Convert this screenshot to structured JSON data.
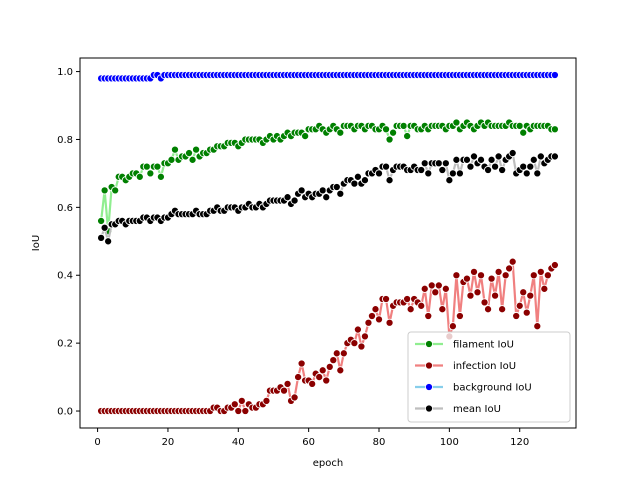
{
  "chart_data": {
    "type": "line",
    "title": "",
    "xlabel": "epoch",
    "ylabel": "IoU",
    "xlim": [
      -5,
      136
    ],
    "ylim": [
      -0.05,
      1.04
    ],
    "xticks": [
      0,
      20,
      40,
      60,
      80,
      100,
      120
    ],
    "yticks": [
      0.0,
      0.2,
      0.4,
      0.6,
      0.8,
      1.0
    ],
    "xtick_labels": [
      "0",
      "20",
      "40",
      "60",
      "80",
      "100",
      "120"
    ],
    "ytick_labels": [
      "0.0",
      "0.2",
      "0.4",
      "0.6",
      "0.8",
      "1.0"
    ],
    "grid": false,
    "legend_position": "lower-right",
    "x_start": 1,
    "x_step": 1,
    "series": [
      {
        "name": "filament IoU",
        "line_color": "#90ee90",
        "marker_color": "#008000",
        "values": [
          0.56,
          0.65,
          0.53,
          0.66,
          0.65,
          0.69,
          0.69,
          0.68,
          0.69,
          0.7,
          0.7,
          0.69,
          0.72,
          0.72,
          0.7,
          0.72,
          0.72,
          0.69,
          0.73,
          0.73,
          0.74,
          0.77,
          0.74,
          0.75,
          0.75,
          0.76,
          0.74,
          0.77,
          0.75,
          0.76,
          0.76,
          0.77,
          0.77,
          0.78,
          0.78,
          0.78,
          0.79,
          0.79,
          0.79,
          0.78,
          0.79,
          0.8,
          0.8,
          0.8,
          0.8,
          0.8,
          0.79,
          0.8,
          0.81,
          0.8,
          0.81,
          0.8,
          0.81,
          0.82,
          0.81,
          0.82,
          0.82,
          0.82,
          0.81,
          0.83,
          0.83,
          0.83,
          0.84,
          0.83,
          0.82,
          0.83,
          0.84,
          0.83,
          0.82,
          0.84,
          0.84,
          0.84,
          0.83,
          0.84,
          0.84,
          0.83,
          0.84,
          0.84,
          0.83,
          0.83,
          0.84,
          0.83,
          0.8,
          0.82,
          0.84,
          0.84,
          0.84,
          0.81,
          0.84,
          0.84,
          0.83,
          0.83,
          0.84,
          0.83,
          0.84,
          0.84,
          0.84,
          0.84,
          0.83,
          0.84,
          0.84,
          0.85,
          0.83,
          0.84,
          0.85,
          0.84,
          0.83,
          0.84,
          0.85,
          0.84,
          0.85,
          0.84,
          0.84,
          0.84,
          0.84,
          0.84,
          0.85,
          0.84,
          0.84,
          0.84,
          0.82,
          0.84,
          0.83,
          0.84,
          0.84,
          0.84,
          0.84,
          0.84,
          0.83,
          0.83
        ]
      },
      {
        "name": "infection IoU",
        "line_color": "#f08080",
        "marker_color": "#8b0000",
        "values": [
          0.0,
          0.0,
          0.0,
          0.0,
          0.0,
          0.0,
          0.0,
          0.0,
          0.0,
          0.0,
          0.0,
          0.0,
          0.0,
          0.0,
          0.0,
          0.0,
          0.0,
          0.0,
          0.0,
          0.0,
          0.0,
          0.0,
          0.0,
          0.0,
          0.0,
          0.0,
          0.0,
          0.0,
          0.0,
          0.0,
          0.0,
          0.0,
          0.01,
          0.01,
          0.0,
          0.0,
          0.01,
          0.01,
          0.02,
          0.0,
          0.03,
          0.0,
          0.02,
          0.01,
          0.01,
          0.02,
          0.02,
          0.03,
          0.06,
          0.06,
          0.06,
          0.07,
          0.06,
          0.08,
          0.03,
          0.04,
          0.1,
          0.14,
          0.09,
          0.09,
          0.08,
          0.11,
          0.1,
          0.12,
          0.09,
          0.13,
          0.15,
          0.17,
          0.12,
          0.17,
          0.2,
          0.21,
          0.2,
          0.24,
          0.19,
          0.22,
          0.26,
          0.28,
          0.3,
          0.27,
          0.33,
          0.33,
          0.26,
          0.31,
          0.32,
          0.32,
          0.32,
          0.33,
          0.3,
          0.33,
          0.32,
          0.31,
          0.36,
          0.28,
          0.37,
          0.35,
          0.37,
          0.3,
          0.36,
          0.22,
          0.25,
          0.4,
          0.28,
          0.38,
          0.39,
          0.34,
          0.41,
          0.35,
          0.4,
          0.32,
          0.3,
          0.39,
          0.34,
          0.41,
          0.3,
          0.4,
          0.42,
          0.44,
          0.28,
          0.31,
          0.35,
          0.29,
          0.34,
          0.4,
          0.25,
          0.41,
          0.36,
          0.4,
          0.42,
          0.43
        ]
      },
      {
        "name": "background IoU",
        "line_color": "#87ceeb",
        "marker_color": "#0000ff",
        "values": [
          0.98,
          0.98,
          0.98,
          0.98,
          0.98,
          0.98,
          0.98,
          0.98,
          0.98,
          0.98,
          0.98,
          0.98,
          0.98,
          0.98,
          0.98,
          0.99,
          0.99,
          0.98,
          0.99,
          0.99,
          0.99,
          0.99,
          0.99,
          0.99,
          0.99,
          0.99,
          0.99,
          0.99,
          0.99,
          0.99,
          0.99,
          0.99,
          0.99,
          0.99,
          0.99,
          0.99,
          0.99,
          0.99,
          0.99,
          0.99,
          0.99,
          0.99,
          0.99,
          0.99,
          0.99,
          0.99,
          0.99,
          0.99,
          0.99,
          0.99,
          0.99,
          0.99,
          0.99,
          0.99,
          0.99,
          0.99,
          0.99,
          0.99,
          0.99,
          0.99,
          0.99,
          0.99,
          0.99,
          0.99,
          0.99,
          0.99,
          0.99,
          0.99,
          0.99,
          0.99,
          0.99,
          0.99,
          0.99,
          0.99,
          0.99,
          0.99,
          0.99,
          0.99,
          0.99,
          0.99,
          0.99,
          0.99,
          0.99,
          0.99,
          0.99,
          0.99,
          0.99,
          0.99,
          0.99,
          0.99,
          0.99,
          0.99,
          0.99,
          0.99,
          0.99,
          0.99,
          0.99,
          0.99,
          0.99,
          0.99,
          0.99,
          0.99,
          0.99,
          0.99,
          0.99,
          0.99,
          0.99,
          0.99,
          0.99,
          0.99,
          0.99,
          0.99,
          0.99,
          0.99,
          0.99,
          0.99,
          0.99,
          0.99,
          0.99,
          0.99,
          0.99,
          0.99,
          0.99,
          0.99,
          0.99,
          0.99,
          0.99,
          0.99,
          0.99,
          0.99
        ]
      },
      {
        "name": "mean IoU",
        "line_color": "#bebebe",
        "marker_color": "#000000",
        "values": [
          0.51,
          0.54,
          0.5,
          0.55,
          0.55,
          0.56,
          0.56,
          0.55,
          0.56,
          0.56,
          0.56,
          0.56,
          0.57,
          0.57,
          0.56,
          0.57,
          0.57,
          0.56,
          0.57,
          0.57,
          0.58,
          0.59,
          0.58,
          0.58,
          0.58,
          0.58,
          0.58,
          0.59,
          0.58,
          0.58,
          0.58,
          0.59,
          0.59,
          0.6,
          0.59,
          0.59,
          0.6,
          0.6,
          0.6,
          0.59,
          0.6,
          0.6,
          0.61,
          0.6,
          0.6,
          0.61,
          0.6,
          0.61,
          0.62,
          0.62,
          0.62,
          0.62,
          0.62,
          0.63,
          0.61,
          0.62,
          0.64,
          0.65,
          0.63,
          0.64,
          0.63,
          0.64,
          0.64,
          0.65,
          0.63,
          0.65,
          0.66,
          0.66,
          0.64,
          0.67,
          0.68,
          0.68,
          0.67,
          0.69,
          0.67,
          0.68,
          0.7,
          0.7,
          0.71,
          0.7,
          0.72,
          0.72,
          0.68,
          0.71,
          0.72,
          0.72,
          0.72,
          0.71,
          0.71,
          0.72,
          0.71,
          0.71,
          0.73,
          0.7,
          0.73,
          0.73,
          0.73,
          0.71,
          0.73,
          0.68,
          0.7,
          0.74,
          0.7,
          0.74,
          0.74,
          0.72,
          0.75,
          0.73,
          0.74,
          0.72,
          0.71,
          0.74,
          0.72,
          0.75,
          0.71,
          0.74,
          0.75,
          0.76,
          0.7,
          0.71,
          0.72,
          0.7,
          0.72,
          0.74,
          0.7,
          0.75,
          0.73,
          0.74,
          0.75,
          0.75
        ]
      }
    ]
  }
}
